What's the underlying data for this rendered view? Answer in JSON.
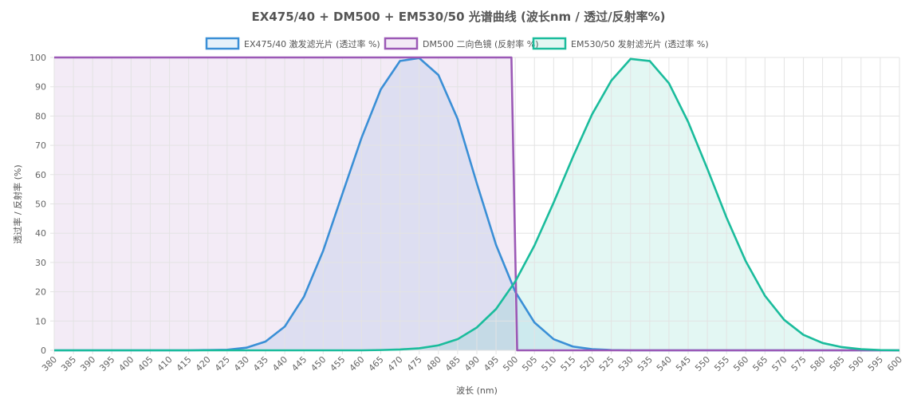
{
  "chart_data": {
    "type": "area",
    "title": "EX475/40 + DM500 + EM530/50 光谱曲线 (波长nm / 透过/反射率%)",
    "xlabel": "波长 (nm)",
    "ylabel": "透过率 / 反射率 (%)",
    "xlim": [
      380,
      600
    ],
    "ylim": [
      0,
      100
    ],
    "x_ticks": [
      "380",
      "385",
      "390",
      "395",
      "400",
      "405",
      "410",
      "415",
      "420",
      "425",
      "430",
      "435",
      "440",
      "445",
      "450",
      "455",
      "460",
      "465",
      "470",
      "475",
      "480",
      "485",
      "490",
      "495",
      "500",
      "505",
      "510",
      "515",
      "520",
      "525",
      "530",
      "535",
      "540",
      "545",
      "550",
      "555",
      "560",
      "565",
      "570",
      "575",
      "580",
      "585",
      "590",
      "595",
      "600"
    ],
    "y_ticks": [
      "0",
      "10",
      "20",
      "30",
      "40",
      "50",
      "60",
      "70",
      "80",
      "90",
      "100"
    ],
    "grid": true,
    "legend_position": "top",
    "series": [
      {
        "name": "EX475/40 激发滤光片 (透过率 %)",
        "color": "#3a8fd6",
        "fill": "rgba(58,143,214,0.13)",
        "x": [
          380,
          385,
          390,
          395,
          400,
          405,
          410,
          415,
          420,
          425,
          430,
          435,
          440,
          445,
          450,
          455,
          460,
          465,
          470,
          475,
          480,
          485,
          490,
          495,
          500,
          505,
          510,
          515,
          520,
          525,
          530,
          535,
          540,
          545,
          550,
          555,
          560,
          565,
          570,
          575,
          580,
          585,
          590,
          595,
          600
        ],
        "values": [
          0,
          0,
          0,
          0,
          0,
          0,
          0,
          0,
          0.1,
          0.2,
          0.9,
          3,
          8.1,
          18.3,
          34,
          53.4,
          72.6,
          89.1,
          98.8,
          99.8,
          94,
          79,
          57,
          36,
          20,
          9.5,
          3.8,
          1.3,
          0.4,
          0.1,
          0,
          0,
          0,
          0,
          0,
          0,
          0,
          0,
          0,
          0,
          0,
          0,
          0,
          0,
          0
        ]
      },
      {
        "name": "DM500 二向色镜 (反射率 %)",
        "color": "#9b59b6",
        "fill": "rgba(155,89,182,0.12)",
        "x": [
          380,
          499,
          500.5,
          600
        ],
        "values": [
          100,
          100,
          0,
          0
        ]
      },
      {
        "name": "EM530/50 发射滤光片 (透过率 %)",
        "color": "#1abc9c",
        "fill": "rgba(26,188,156,0.12)",
        "x": [
          380,
          385,
          390,
          395,
          400,
          405,
          410,
          415,
          420,
          425,
          430,
          435,
          440,
          445,
          450,
          455,
          460,
          465,
          470,
          475,
          480,
          485,
          490,
          495,
          500,
          505,
          510,
          515,
          520,
          525,
          530,
          535,
          540,
          545,
          550,
          555,
          560,
          565,
          570,
          575,
          580,
          585,
          590,
          595,
          600
        ],
        "values": [
          0,
          0,
          0,
          0,
          0,
          0,
          0,
          0,
          0,
          0,
          0,
          0,
          0,
          0,
          0,
          0,
          0,
          0.1,
          0.3,
          0.7,
          1.7,
          3.8,
          7.8,
          14.1,
          23.5,
          35.8,
          50.5,
          66,
          80.6,
          92.1,
          99.5,
          98.8,
          91.2,
          78,
          62,
          45.3,
          30.4,
          18.6,
          10.4,
          5.3,
          2.5,
          1.1,
          0.4,
          0.1,
          0
        ]
      }
    ]
  }
}
